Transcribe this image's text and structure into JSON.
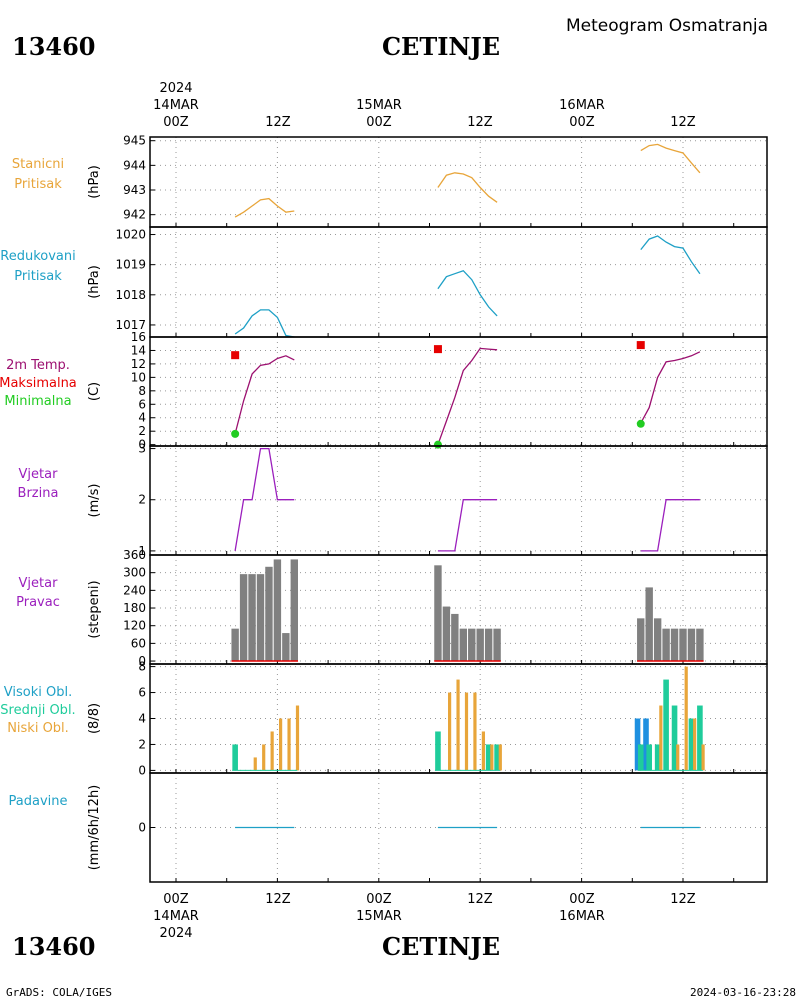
{
  "header": {
    "station_id": "13460",
    "station_name": "CETINJE",
    "title": "Meteogram Osmatranja"
  },
  "time_axis": {
    "year": "2024",
    "days": [
      {
        "day_label": "14MAR",
        "hour_labels": [
          "00Z",
          "12Z"
        ]
      },
      {
        "day_label": "15MAR",
        "hour_labels": [
          "00Z",
          "12Z"
        ]
      },
      {
        "day_label": "16MAR",
        "hour_labels": [
          "00Z",
          "12Z"
        ]
      }
    ]
  },
  "footer": {
    "left": "GrADS: COLA/IGES",
    "right": "2024-03-16-23:28"
  },
  "colors": {
    "orange": "#e8a53a",
    "cyan": "#1ea0c6",
    "purple": "#9b1fbd",
    "red": "#e60000",
    "green": "#22cc22",
    "gray": "#808080",
    "teal": "#1fcc9b",
    "blue": "#1e90e0",
    "magenta": "#9c1070"
  },
  "chart_data": [
    {
      "panel": "stanicni_pritisak",
      "type": "line",
      "labels": [
        "Stanicni",
        "Pritisak"
      ],
      "ylabel": "(hPa)",
      "ylim": [
        941.5,
        945.15
      ],
      "yticks": [
        942,
        943,
        944,
        945
      ],
      "series": [
        {
          "x": [
            [
              7,
              941.9
            ],
            [
              8,
              942.1
            ],
            [
              9,
              942.35
            ],
            [
              10,
              942.6
            ],
            [
              11,
              942.65
            ],
            [
              12,
              942.35
            ],
            [
              13,
              942.1
            ],
            [
              14,
              942.15
            ]
          ],
          "color": "orange"
        },
        {
          "x": [
            [
              31,
              943.1
            ],
            [
              32,
              943.6
            ],
            [
              33,
              943.7
            ],
            [
              34,
              943.65
            ],
            [
              35,
              943.5
            ],
            [
              36,
              943.1
            ],
            [
              37,
              942.75
            ],
            [
              38,
              942.5
            ]
          ],
          "color": "orange"
        },
        {
          "x": [
            [
              55,
              944.6
            ],
            [
              56,
              944.8
            ],
            [
              57,
              944.85
            ],
            [
              58,
              944.7
            ],
            [
              59,
              944.6
            ],
            [
              60,
              944.5
            ],
            [
              61,
              944.1
            ],
            [
              62,
              943.7
            ]
          ],
          "color": "orange"
        }
      ]
    },
    {
      "panel": "redukovani_pritisak",
      "type": "line",
      "labels": [
        "Redukovani",
        "Pritisak"
      ],
      "ylabel": "(hPa)",
      "ylim": [
        1016.6,
        1020.25
      ],
      "yticks": [
        1017,
        1018,
        1019,
        1020
      ],
      "series": [
        {
          "x": [
            [
              7,
              1016.7
            ],
            [
              8,
              1016.9
            ],
            [
              9,
              1017.3
            ],
            [
              10,
              1017.5
            ],
            [
              11,
              1017.5
            ],
            [
              12,
              1017.25
            ],
            [
              13,
              1016.65
            ],
            [
              14,
              1016.6
            ]
          ],
          "color": "cyan"
        },
        {
          "x": [
            [
              31,
              1018.2
            ],
            [
              32,
              1018.6
            ],
            [
              33,
              1018.7
            ],
            [
              34,
              1018.8
            ],
            [
              35,
              1018.5
            ],
            [
              36,
              1018.0
            ],
            [
              37,
              1017.6
            ],
            [
              38,
              1017.3
            ]
          ],
          "color": "cyan"
        },
        {
          "x": [
            [
              55,
              1019.5
            ],
            [
              56,
              1019.85
            ],
            [
              57,
              1019.95
            ],
            [
              58,
              1019.75
            ],
            [
              59,
              1019.6
            ],
            [
              60,
              1019.55
            ],
            [
              61,
              1019.1
            ],
            [
              62,
              1018.7
            ]
          ],
          "color": "cyan"
        }
      ]
    },
    {
      "panel": "temperatura",
      "type": "line",
      "labels": [
        "2m Temp.",
        "Maksimalna",
        "Minimalna"
      ],
      "ylabel": "(C)",
      "ylim": [
        -0.2,
        16
      ],
      "yticks": [
        0,
        2,
        4,
        6,
        8,
        10,
        12,
        14,
        16
      ],
      "series": [
        {
          "x": [
            [
              7,
              1.6
            ],
            [
              8,
              6.5
            ],
            [
              9,
              10.5
            ],
            [
              10,
              11.8
            ],
            [
              11,
              12.0
            ],
            [
              12,
              12.8
            ],
            [
              13,
              13.2
            ],
            [
              14,
              12.6
            ]
          ],
          "color": "magenta"
        },
        {
          "x": [
            [
              31,
              0
            ],
            [
              32,
              3.5
            ],
            [
              33,
              7.0
            ],
            [
              34,
              11.0
            ],
            [
              35,
              12.5
            ],
            [
              36,
              14.3
            ],
            [
              37,
              14.2
            ],
            [
              38,
              14.1
            ]
          ],
          "color": "magenta"
        },
        {
          "x": [
            [
              55,
              3.2
            ],
            [
              56,
              5.5
            ],
            [
              57,
              10.0
            ],
            [
              58,
              12.3
            ],
            [
              59,
              12.5
            ],
            [
              60,
              12.8
            ],
            [
              61,
              13.2
            ],
            [
              62,
              13.8
            ]
          ],
          "color": "magenta"
        }
      ],
      "max_points": [
        [
          7,
          13.3
        ],
        [
          31,
          14.2
        ],
        [
          55,
          14.8
        ]
      ],
      "min_points": [
        [
          7,
          1.6
        ],
        [
          31,
          0
        ],
        [
          55,
          3.1
        ]
      ]
    },
    {
      "panel": "vjetar_brzina",
      "type": "line",
      "labels": [
        "Vjetar",
        "Brzina"
      ],
      "ylabel": "(m/s)",
      "ylim": [
        0.92,
        3.05
      ],
      "yticks": [
        1,
        2,
        3
      ],
      "series": [
        {
          "x": [
            [
              7,
              1
            ],
            [
              8,
              2
            ],
            [
              9,
              2
            ],
            [
              10,
              3
            ],
            [
              11,
              3
            ],
            [
              12,
              2
            ],
            [
              13,
              2
            ],
            [
              14,
              2
            ]
          ],
          "color": "purple"
        },
        {
          "x": [
            [
              31,
              1
            ],
            [
              32,
              1
            ],
            [
              33,
              1
            ],
            [
              34,
              2
            ],
            [
              35,
              2
            ],
            [
              36,
              2
            ],
            [
              37,
              2
            ],
            [
              38,
              2
            ]
          ],
          "color": "purple"
        },
        {
          "x": [
            [
              55,
              1
            ],
            [
              56,
              1
            ],
            [
              57,
              1
            ],
            [
              58,
              2
            ],
            [
              59,
              2
            ],
            [
              60,
              2
            ],
            [
              61,
              2
            ],
            [
              62,
              2
            ]
          ],
          "color": "purple"
        }
      ]
    },
    {
      "panel": "vjetar_pravac",
      "type": "bar",
      "labels": [
        "Vjetar",
        "Pravac"
      ],
      "ylabel": "(stepeni)",
      "ylim": [
        -10,
        360
      ],
      "yticks": [
        0,
        60,
        120,
        180,
        240,
        300,
        360
      ],
      "bars": [
        [
          7,
          110
        ],
        [
          8,
          295
        ],
        [
          9,
          295
        ],
        [
          10,
          295
        ],
        [
          11,
          320
        ],
        [
          12,
          345
        ],
        [
          13,
          95
        ],
        [
          14,
          345
        ],
        [
          31,
          325
        ],
        [
          32,
          185
        ],
        [
          33,
          160
        ],
        [
          34,
          110
        ],
        [
          35,
          110
        ],
        [
          36,
          110
        ],
        [
          37,
          110
        ],
        [
          38,
          110
        ],
        [
          55,
          145
        ],
        [
          56,
          250
        ],
        [
          57,
          145
        ],
        [
          58,
          110
        ],
        [
          59,
          110
        ],
        [
          60,
          110
        ],
        [
          61,
          110
        ],
        [
          62,
          110
        ]
      ],
      "bar_color": "gray",
      "baseline_color": "red"
    },
    {
      "panel": "oblacnost",
      "type": "bar",
      "labels": [
        "Visoki Obl.",
        "Srednji Obl.",
        "Niski Obl."
      ],
      "ylabel": "(8/8)",
      "ylim": [
        -0.2,
        8.2
      ],
      "yticks": [
        0,
        2,
        4,
        6,
        8
      ],
      "series": [
        {
          "name": "Visoki Obl.",
          "color": "blue",
          "bars": [
            [
              55,
              4
            ],
            [
              56,
              4
            ]
          ]
        },
        {
          "name": "Srednji Obl.",
          "color": "teal",
          "bars": [
            [
              7,
              2
            ],
            [
              31,
              3
            ],
            [
              37,
              2
            ],
            [
              38,
              2
            ],
            [
              55,
              2
            ],
            [
              56,
              2
            ],
            [
              57,
              2
            ],
            [
              58,
              7
            ],
            [
              59,
              5
            ],
            [
              61,
              4
            ],
            [
              62,
              5
            ]
          ]
        },
        {
          "name": "Niski Obl.",
          "color": "orange",
          "bars": [
            [
              8,
              0
            ],
            [
              9,
              1
            ],
            [
              10,
              2
            ],
            [
              11,
              3
            ],
            [
              12,
              4
            ],
            [
              13,
              4
            ],
            [
              14,
              5
            ],
            [
              32,
              6
            ],
            [
              33,
              7
            ],
            [
              34,
              6
            ],
            [
              35,
              6
            ],
            [
              36,
              3
            ],
            [
              37,
              2
            ],
            [
              38,
              2
            ],
            [
              57,
              5
            ],
            [
              59,
              2
            ],
            [
              60,
              8
            ],
            [
              61,
              4
            ],
            [
              62,
              2
            ]
          ]
        }
      ]
    },
    {
      "panel": "padavine",
      "type": "line",
      "labels": [
        "Padavine"
      ],
      "ylabel": "(mm/6h/12h)",
      "ylim": [
        -5,
        5
      ],
      "yticks": [
        0
      ],
      "series": [
        {
          "x": [
            [
              7,
              0
            ],
            [
              14,
              0
            ]
          ],
          "color": "cyan"
        },
        {
          "x": [
            [
              31,
              0
            ],
            [
              38,
              0
            ]
          ],
          "color": "cyan"
        },
        {
          "x": [
            [
              55,
              0
            ],
            [
              62,
              0
            ]
          ],
          "color": "cyan"
        }
      ]
    }
  ]
}
